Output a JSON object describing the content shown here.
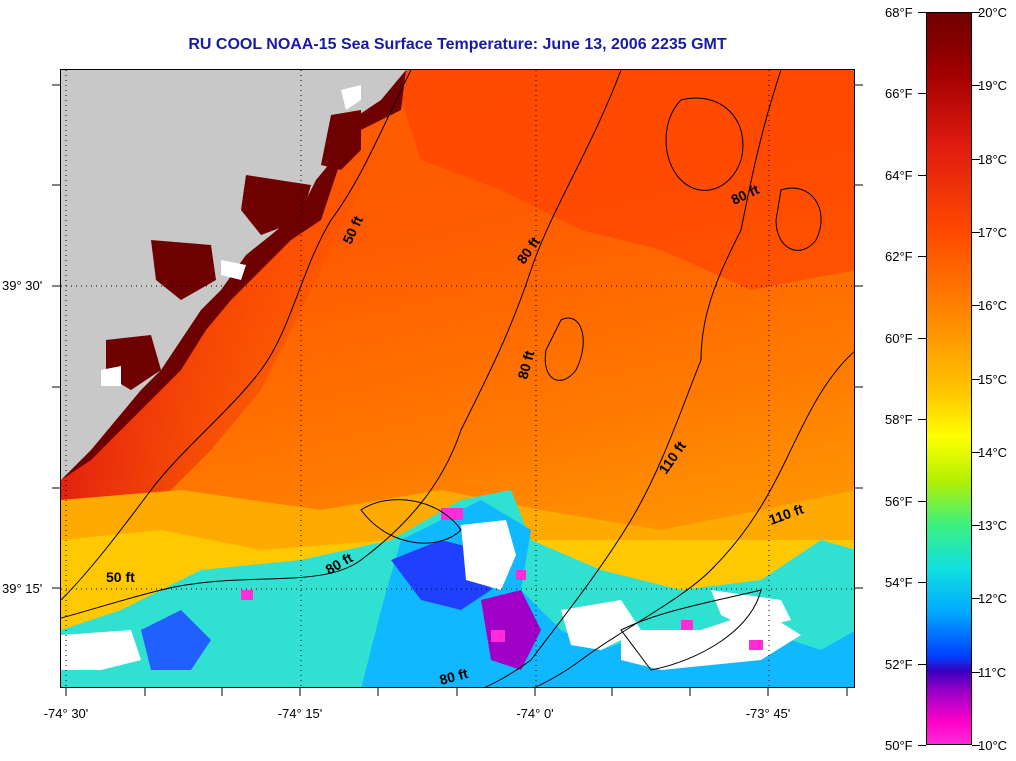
{
  "title": "RU COOL  NOAA-15  Sea Surface Temperature:  June 13, 2006 2235 GMT",
  "map": {
    "latitude_labels": [
      "39° 30'",
      "39° 15'"
    ],
    "longitude_labels": [
      "-74° 30'",
      "-74° 15'",
      "-74° 0'",
      "-73° 45'"
    ],
    "depth_contour_labels": [
      "50 ft",
      "50 ft",
      "80 ft",
      "80 ft",
      "80 ft",
      "80 ft",
      "80 ft",
      "110 ft",
      "110 ft"
    ],
    "land_color": "#c8c8c8",
    "colors": {
      "land": "#c8c8c8",
      "no_data": "#ffffff",
      "contour": "#000000",
      "title": "#1a1aa6"
    }
  },
  "colorbar": {
    "fahrenheit_labels": [
      "68°F",
      "66°F",
      "64°F",
      "62°F",
      "60°F",
      "58°F",
      "56°F",
      "54°F",
      "52°F",
      "50°F"
    ],
    "celsius_labels": [
      "20°C",
      "19°C",
      "18°C",
      "17°C",
      "16°C",
      "15°C",
      "14°C",
      "13°C",
      "12°C",
      "11°C",
      "10°C"
    ],
    "range_fahrenheit": [
      50,
      68
    ],
    "range_celsius": [
      10,
      20
    ]
  }
}
